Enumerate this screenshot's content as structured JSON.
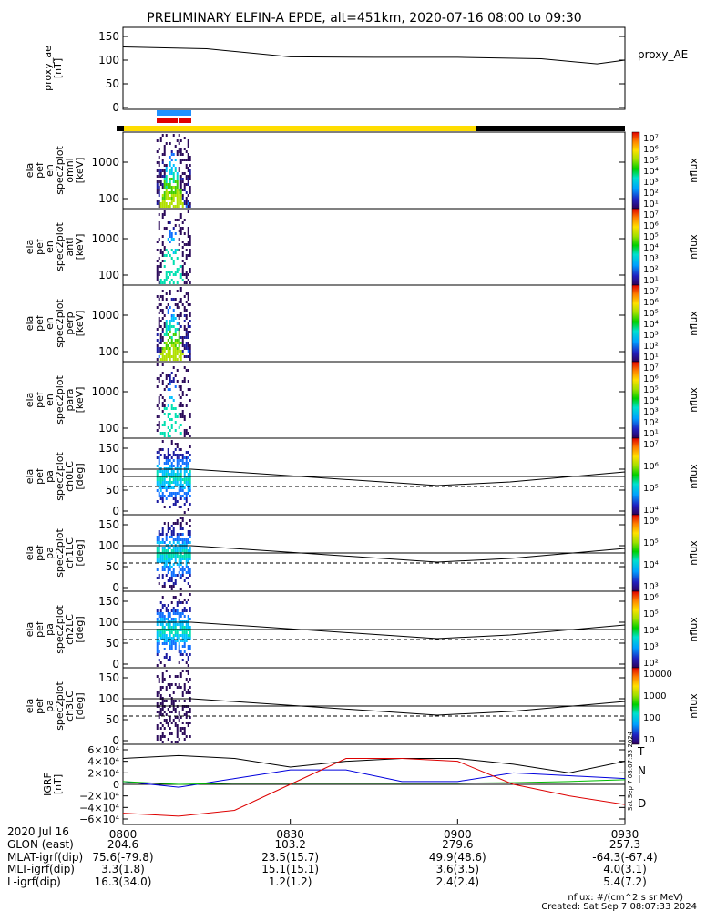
{
  "title": "PRELIMINARY ELFIN-A EPDE, alt=451km, 2020-07-16 08:00 to 09:30",
  "colors": {
    "science_bar_blue": "#1e90ff",
    "science_bar_red": "#e00000",
    "region_bar_yellow": "#ffdd00",
    "region_bar_black": "#000000",
    "trace_N": "#0000dd",
    "trace_T": "#000000",
    "trace_L": "#00bb00",
    "trace_D": "#dd0000"
  },
  "panels": [
    {
      "id": "proxy_ae",
      "ylabel": [
        "proxy_ae",
        "[nT]"
      ],
      "ticks": [
        "150",
        "100",
        "50",
        "0"
      ],
      "right_label": "proxy_AE"
    },
    {
      "id": "en_omni",
      "ylabel": [
        "ela",
        "pef",
        "en",
        "spec2plot",
        "omni",
        "[keV]"
      ],
      "ticks": [
        "1000",
        "100"
      ],
      "cbar_ticks": [
        "10⁷",
        "10⁶",
        "10⁵",
        "10⁴",
        "10³",
        "10²",
        "10¹"
      ],
      "cbar_unit": "nflux"
    },
    {
      "id": "en_anti",
      "ylabel": [
        "ela",
        "pef",
        "en",
        "spec2plot",
        "anti",
        "[keV]"
      ],
      "ticks": [
        "1000",
        "100"
      ],
      "cbar_ticks": [
        "10⁷",
        "10⁶",
        "10⁵",
        "10⁴",
        "10³",
        "10²",
        "10¹"
      ],
      "cbar_unit": "nflux"
    },
    {
      "id": "en_perp",
      "ylabel": [
        "ela",
        "pef",
        "en",
        "spec2plot",
        "perp",
        "[keV]"
      ],
      "ticks": [
        "1000",
        "100"
      ],
      "cbar_ticks": [
        "10⁷",
        "10⁶",
        "10⁵",
        "10⁴",
        "10³",
        "10²",
        "10¹"
      ],
      "cbar_unit": "nflux"
    },
    {
      "id": "en_para",
      "ylabel": [
        "ela",
        "pef",
        "en",
        "spec2plot",
        "para",
        "[keV]"
      ],
      "ticks": [
        "1000",
        "100"
      ],
      "cbar_ticks": [
        "10⁷",
        "10⁶",
        "10⁵",
        "10⁴",
        "10³",
        "10²",
        "10¹"
      ],
      "cbar_unit": "nflux"
    },
    {
      "id": "ch0LC",
      "ylabel": [
        "ela",
        "pef",
        "pa",
        "spec2plot",
        "ch0LC",
        "[deg]"
      ],
      "ticks": [
        "150",
        "100",
        "50",
        "0"
      ],
      "cbar_ticks": [
        "10⁷",
        "10⁶",
        "10⁵",
        "10⁴"
      ],
      "cbar_unit": "nflux"
    },
    {
      "id": "ch1LC",
      "ylabel": [
        "ela",
        "pef",
        "pa",
        "spec2plot",
        "ch1LC",
        "[deg]"
      ],
      "ticks": [
        "150",
        "100",
        "50",
        "0"
      ],
      "cbar_ticks": [
        "10⁶",
        "10⁵",
        "10⁴",
        "10³"
      ],
      "cbar_unit": "nflux"
    },
    {
      "id": "ch2LC",
      "ylabel": [
        "ela",
        "pef",
        "pa",
        "spec2plot",
        "ch2LC",
        "[deg]"
      ],
      "ticks": [
        "150",
        "100",
        "50",
        "0"
      ],
      "cbar_ticks": [
        "10⁶",
        "10⁵",
        "10⁴",
        "10³",
        "10²"
      ],
      "cbar_unit": "nflux"
    },
    {
      "id": "ch3LC",
      "ylabel": [
        "ela",
        "pef",
        "pa",
        "spec2plot",
        "ch3LC",
        "[deg]"
      ],
      "ticks": [
        "150",
        "100",
        "50",
        "0"
      ],
      "cbar_ticks": [
        "10000",
        "1000",
        "100",
        "10"
      ],
      "cbar_unit": "nflux"
    },
    {
      "id": "igrf",
      "ylabel": [
        "IGRF",
        "[nT]"
      ],
      "ticks": [
        "6×10⁴",
        "4×10⁴",
        "2×10⁴",
        "0",
        "−2×10⁴",
        "−4×10⁴",
        "−6×10⁴"
      ],
      "trace_labels": [
        "T",
        "N",
        "L",
        "D"
      ]
    }
  ],
  "xaxis": {
    "time_labels": [
      "0800",
      "0830",
      "0900",
      "0930"
    ],
    "rows": [
      {
        "name": "2020 Jul 16",
        "vals": [
          "",
          "",
          "",
          ""
        ]
      },
      {
        "name": "GLON (east)",
        "vals": [
          "204.6",
          "103.2",
          "279.6",
          "257.3"
        ]
      },
      {
        "name": "MLAT-igrf(dip)",
        "vals": "75.6(-79.8)|23.5(15.7)|49.9(48.6)|-64.3(-67.4)"
      },
      {
        "name": "MLT-igrf(dip)",
        "vals": "3.3(1.8)|15.1(15.1)|3.6(3.5)|4.0(3.1)"
      },
      {
        "name": "L-igrf(dip)",
        "vals": "16.3(34.0)|1.2(1.2)|2.4(2.4)|5.4(7.2)"
      }
    ]
  },
  "footer": {
    "unit_note": "nflux: #/(cm^2 s sr MeV)",
    "created": "Created: Sat Sep  7 08:07:33 2024",
    "side_stamp": "Sat Sep  7 08:07:33 2024"
  },
  "chart_data": [
    {
      "type": "line",
      "title": "PRELIMINARY ELFIN-A EPDE, alt=451km, 2020-07-16 08:00 to 09:30",
      "ylabel": "proxy_ae [nT]",
      "ylim": [
        0,
        160
      ],
      "x": [
        "0800",
        "0815",
        "0830",
        "0845",
        "0900",
        "0915",
        "0925",
        "0930"
      ],
      "values": [
        128,
        124,
        107,
        106,
        106,
        103,
        92,
        100
      ]
    },
    {
      "type": "heatmap",
      "ylabel": "ela pef en spec2plot omni [keV]",
      "yscale": "log",
      "ylim": [
        50,
        5000
      ],
      "crange": [
        10,
        10000000
      ],
      "active_interval": [
        "0806",
        "0812"
      ]
    },
    {
      "type": "heatmap",
      "ylabel": "ela pef en spec2plot anti [keV]",
      "yscale": "log",
      "ylim": [
        50,
        5000
      ],
      "crange": [
        10,
        10000000
      ],
      "active_interval": [
        "0806",
        "0812"
      ]
    },
    {
      "type": "heatmap",
      "ylabel": "ela pef en spec2plot perp [keV]",
      "yscale": "log",
      "ylim": [
        50,
        5000
      ],
      "crange": [
        10,
        10000000
      ],
      "active_interval": [
        "0806",
        "0812"
      ]
    },
    {
      "type": "heatmap",
      "ylabel": "ela pef en spec2plot para [keV]",
      "yscale": "log",
      "ylim": [
        50,
        5000
      ],
      "crange": [
        10,
        10000000
      ],
      "active_interval": [
        "0806",
        "0812"
      ]
    },
    {
      "type": "heatmap",
      "ylabel": "ela pef pa spec2plot ch0LC [deg]",
      "ylim": [
        0,
        180
      ],
      "active_interval": [
        "0806",
        "0812"
      ]
    },
    {
      "type": "heatmap",
      "ylabel": "ela pef pa spec2plot ch1LC [deg]",
      "ylim": [
        0,
        180
      ],
      "active_interval": [
        "0806",
        "0812"
      ]
    },
    {
      "type": "heatmap",
      "ylabel": "ela pef pa spec2plot ch2LC [deg]",
      "ylim": [
        0,
        180
      ],
      "active_interval": [
        "0806",
        "0812"
      ]
    },
    {
      "type": "heatmap",
      "ylabel": "ela pef pa spec2plot ch3LC [deg]",
      "ylim": [
        0,
        180
      ],
      "active_interval": [
        "0806",
        "0812"
      ]
    },
    {
      "type": "line",
      "ylabel": "IGRF [nT]",
      "ylim": [
        -60000,
        60000
      ],
      "x": [
        "0800",
        "0810",
        "0820",
        "0830",
        "0840",
        "0850",
        "0900",
        "0910",
        "0920",
        "0930"
      ],
      "series": [
        {
          "name": "T",
          "values": [
            45000,
            50000,
            45000,
            30000,
            40000,
            45000,
            45000,
            35000,
            20000,
            40000
          ]
        },
        {
          "name": "N",
          "values": [
            5000,
            -5000,
            10000,
            25000,
            25000,
            5000,
            5000,
            20000,
            15000,
            10000
          ]
        },
        {
          "name": "L",
          "values": [
            5000,
            0,
            2000,
            2000,
            2000,
            2000,
            2000,
            3000,
            5000,
            8000
          ]
        },
        {
          "name": "D",
          "values": [
            -50000,
            -55000,
            -45000,
            0,
            45000,
            45000,
            40000,
            0,
            -20000,
            -35000
          ]
        }
      ]
    }
  ]
}
